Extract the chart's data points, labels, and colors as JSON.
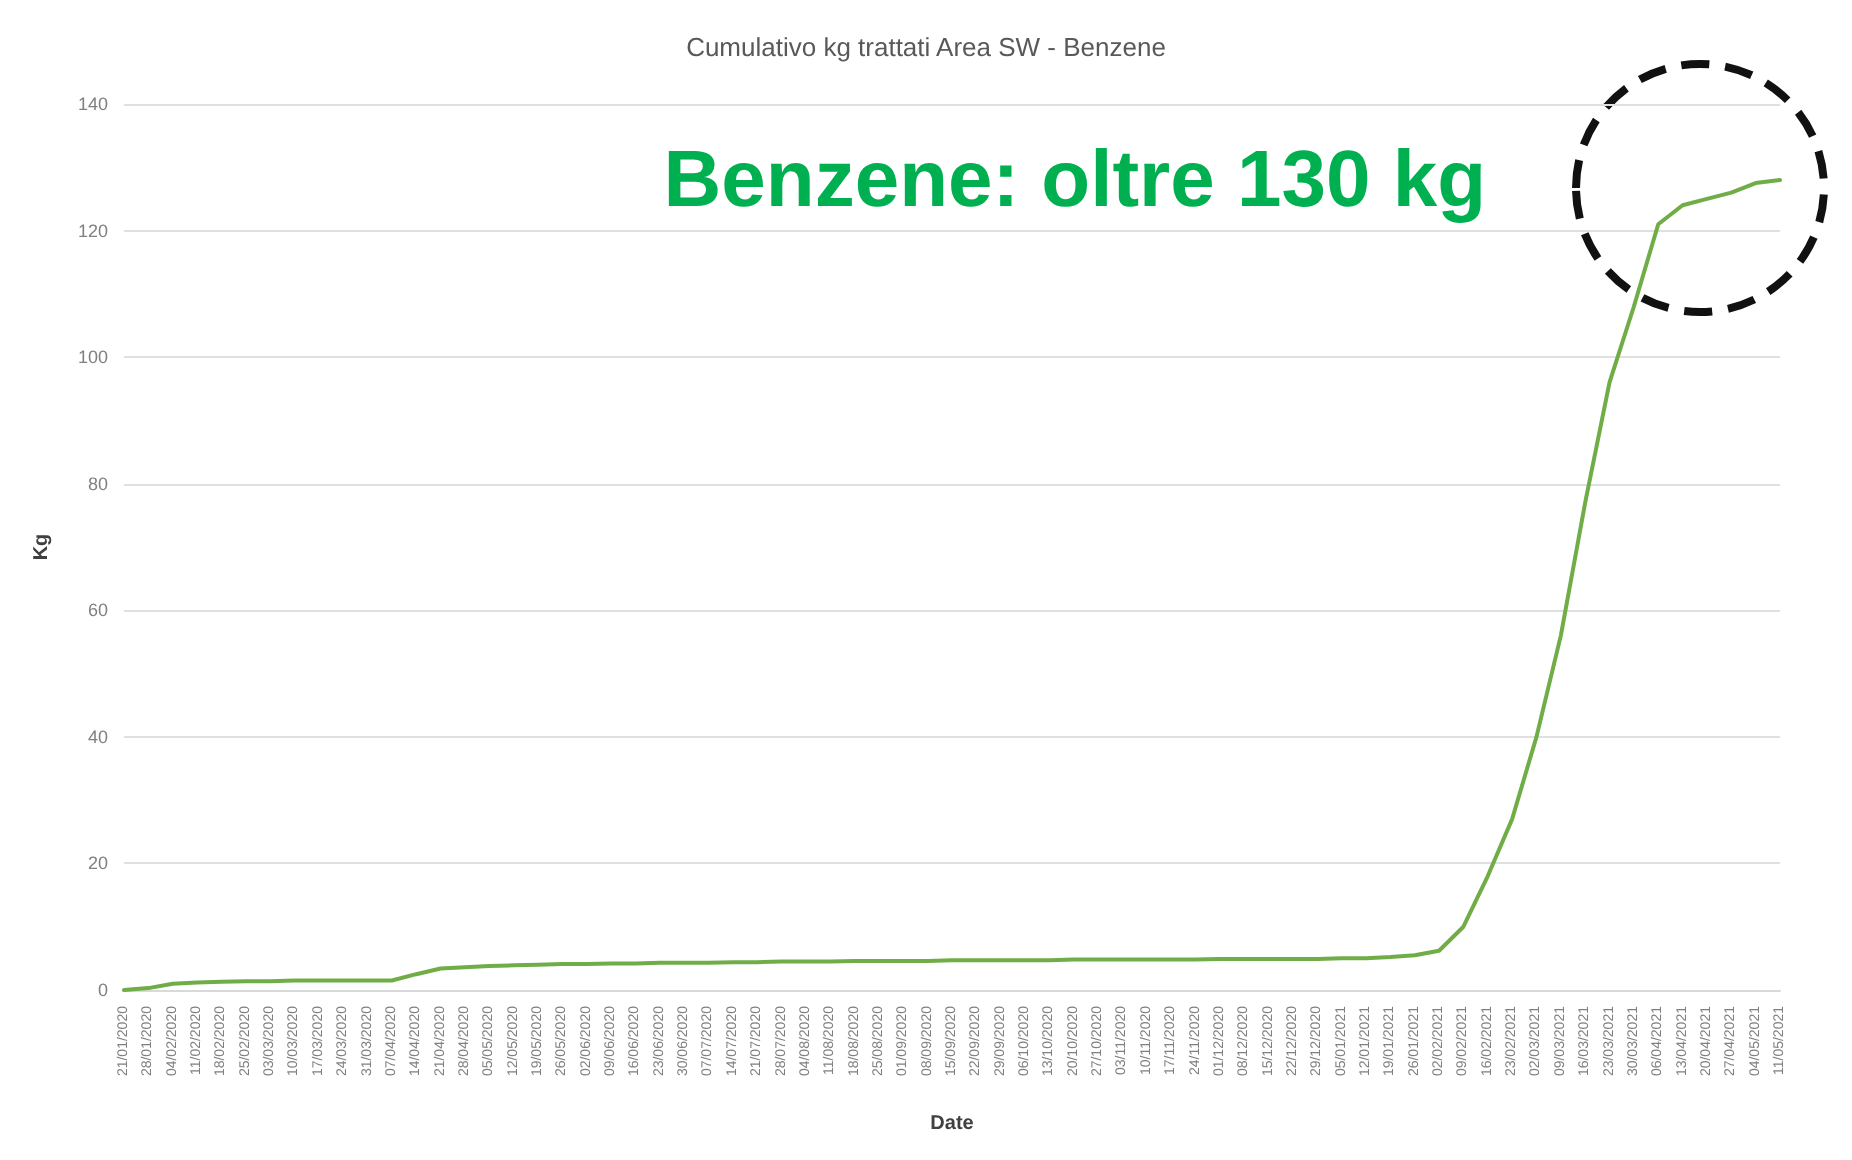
{
  "chart_data": {
    "type": "line",
    "title": "Cumulativo kg trattati Area SW - Benzene",
    "xlabel": "Date",
    "ylabel": "Kg",
    "annotations": [
      "Benzene: oltre 130 kg"
    ],
    "categories": [
      "21/01/2020",
      "28/01/2020",
      "04/02/2020",
      "11/02/2020",
      "18/02/2020",
      "25/02/2020",
      "03/03/2020",
      "10/03/2020",
      "17/03/2020",
      "24/03/2020",
      "31/03/2020",
      "07/04/2020",
      "14/04/2020",
      "21/04/2020",
      "28/04/2020",
      "05/05/2020",
      "12/05/2020",
      "19/05/2020",
      "26/05/2020",
      "02/06/2020",
      "09/06/2020",
      "16/06/2020",
      "23/06/2020",
      "30/06/2020",
      "07/07/2020",
      "14/07/2020",
      "21/07/2020",
      "28/07/2020",
      "04/08/2020",
      "11/08/2020",
      "18/08/2020",
      "25/08/2020",
      "01/09/2020",
      "08/09/2020",
      "15/09/2020",
      "22/09/2020",
      "29/09/2020",
      "06/10/2020",
      "13/10/2020",
      "20/10/2020",
      "27/10/2020",
      "03/11/2020",
      "10/11/2020",
      "17/11/2020",
      "24/11/2020",
      "01/12/2020",
      "08/12/2020",
      "15/12/2020",
      "22/12/2020",
      "29/12/2020",
      "05/01/2021",
      "12/01/2021",
      "19/01/2021",
      "26/01/2021",
      "02/02/2021",
      "09/02/2021",
      "16/02/2021",
      "23/02/2021",
      "02/03/2021",
      "09/03/2021",
      "16/03/2021",
      "23/03/2021",
      "30/03/2021",
      "06/04/2021",
      "13/04/2021",
      "20/04/2021",
      "27/04/2021",
      "04/05/2021",
      "11/05/2021"
    ],
    "series": [
      {
        "color": "#70ad47",
        "values": [
          0,
          0.3,
          1,
          1.2,
          1.3,
          1.4,
          1.4,
          1.5,
          1.5,
          1.5,
          1.5,
          1.5,
          2.5,
          3.4,
          3.6,
          3.8,
          3.9,
          4,
          4.1,
          4.1,
          4.2,
          4.2,
          4.3,
          4.3,
          4.3,
          4.4,
          4.4,
          4.5,
          4.5,
          4.5,
          4.6,
          4.6,
          4.6,
          4.6,
          4.7,
          4.7,
          4.7,
          4.7,
          4.7,
          4.8,
          4.8,
          4.8,
          4.8,
          4.8,
          4.8,
          4.9,
          4.9,
          4.9,
          4.9,
          4.9,
          5,
          5,
          5.2,
          5.5,
          6.2,
          10,
          18,
          27,
          40,
          56,
          77,
          96,
          108,
          121,
          124,
          125,
          126,
          127.5,
          128
        ]
      }
    ],
    "ylim": [
      0,
      140
    ],
    "yticks": [
      0,
      20,
      40,
      60,
      80,
      100,
      120,
      140
    ],
    "grid": "y",
    "marker": "none",
    "line_style": "solid"
  }
}
